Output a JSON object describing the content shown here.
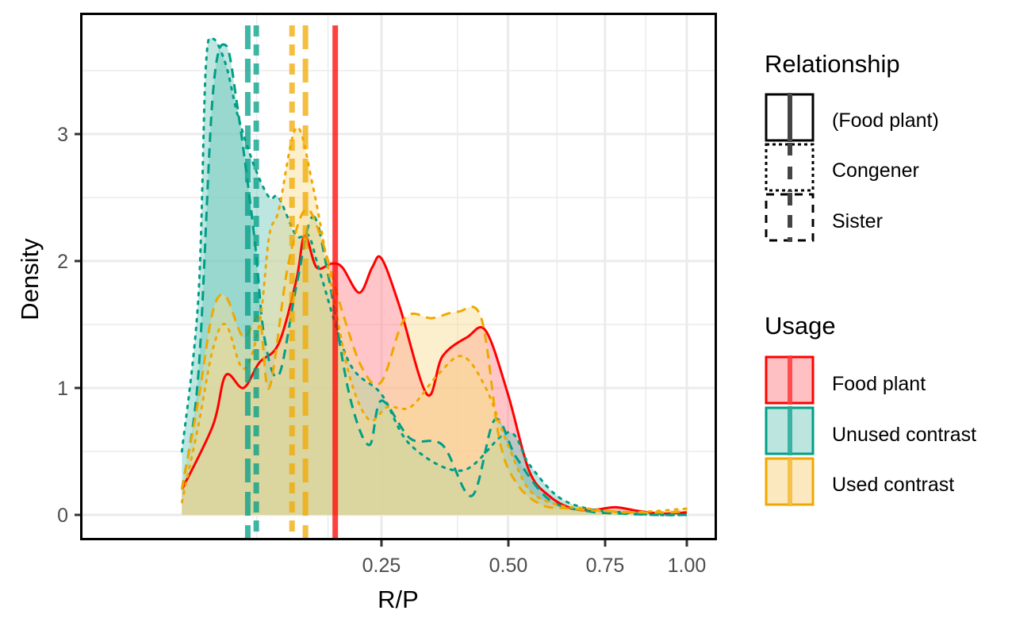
{
  "chart_data": {
    "type": "area",
    "subtype": "density",
    "title": "",
    "xlabel": "R/P",
    "ylabel": "Density",
    "x_scale": "sqrt",
    "xlim": [
      0,
      1
    ],
    "ylim": [
      -0.15,
      3.95
    ],
    "x_ticks": [
      0.25,
      0.5,
      0.75,
      1.0
    ],
    "x_tick_labels": [
      "0.25",
      "0.50",
      "0.75",
      "1.00"
    ],
    "y_ticks": [
      0,
      1,
      2,
      3
    ],
    "y_tick_labels": [
      "0",
      "1",
      "2",
      "3"
    ],
    "grid": true,
    "legend_position": "right",
    "legends": [
      {
        "title": "Relationship",
        "entries": [
          {
            "label": "(Food plant)",
            "linetype": "solid"
          },
          {
            "label": "Congener",
            "linetype": "dotted"
          },
          {
            "label": "Sister",
            "linetype": "dashed"
          }
        ]
      },
      {
        "title": "Usage",
        "entries": [
          {
            "label": "Food plant",
            "color": "#ff0000",
            "fill": "#ffc0c3"
          },
          {
            "label": "Unused contrast",
            "color": "#009e86",
            "fill": "#b9e4df"
          },
          {
            "label": "Used contrast",
            "color": "#f0a800",
            "fill": "#fbe6bc"
          }
        ]
      }
    ],
    "series": [
      {
        "name": "Food plant (Food plant)",
        "usage": "Food plant",
        "relationship": "(Food plant)",
        "color": "#ff0000",
        "fill": "#ff7f87",
        "linetype": "solid",
        "x": [
          0.03,
          0.05,
          0.06,
          0.075,
          0.09,
          0.11,
          0.13,
          0.14,
          0.155,
          0.175,
          0.19,
          0.215,
          0.235,
          0.25,
          0.28,
          0.33,
          0.36,
          0.41,
          0.45,
          0.5,
          0.55,
          0.6,
          0.66,
          0.72,
          0.78,
          0.85,
          0.92,
          1.0
        ],
        "y": [
          0.2,
          0.7,
          1.1,
          1.0,
          1.2,
          1.35,
          1.85,
          2.2,
          1.95,
          1.98,
          1.95,
          1.75,
          1.95,
          2.02,
          1.65,
          0.95,
          1.25,
          1.4,
          1.45,
          0.95,
          0.35,
          0.15,
          0.05,
          0.04,
          0.06,
          0.03,
          0.01,
          0.02
        ],
        "mean_line_x": 0.18
      },
      {
        "name": "Unused contrast (Congener)",
        "usage": "Unused contrast",
        "relationship": "Congener",
        "color": "#009e86",
        "fill": "#6cc8bb",
        "linetype": "dotted",
        "x": [
          0.03,
          0.04,
          0.045,
          0.05,
          0.06,
          0.07,
          0.085,
          0.1,
          0.11,
          0.13,
          0.145,
          0.16,
          0.2,
          0.25,
          0.3,
          0.4,
          0.5,
          0.55,
          0.62,
          0.7,
          0.8,
          0.9,
          1.0
        ],
        "y": [
          0.5,
          1.7,
          3.5,
          3.75,
          3.55,
          3.15,
          2.75,
          2.5,
          2.5,
          2.2,
          2.2,
          1.9,
          1.2,
          0.95,
          0.55,
          0.35,
          0.65,
          0.4,
          0.15,
          0.05,
          0.02,
          0.0,
          0.0
        ],
        "mean_line_x": 0.087
      },
      {
        "name": "Unused contrast (Sister)",
        "usage": "Unused contrast",
        "relationship": "Sister",
        "color": "#009e86",
        "fill": "#6cc8bb",
        "linetype": "dashed",
        "x": [
          0.03,
          0.04,
          0.05,
          0.06,
          0.07,
          0.085,
          0.095,
          0.11,
          0.13,
          0.15,
          0.17,
          0.2,
          0.23,
          0.25,
          0.3,
          0.36,
          0.42,
          0.47,
          0.52,
          0.6,
          0.7,
          0.8,
          0.9,
          1.0
        ],
        "y": [
          0.2,
          1.1,
          3.3,
          3.7,
          3.2,
          2.2,
          1.4,
          1.1,
          1.8,
          2.35,
          1.9,
          0.95,
          0.55,
          0.9,
          0.6,
          0.55,
          0.15,
          0.75,
          0.45,
          0.12,
          0.03,
          0.01,
          0.0,
          0.0
        ],
        "mean_line_x": 0.079
      },
      {
        "name": "Used contrast (Congener)",
        "usage": "Used contrast",
        "relationship": "Congener",
        "color": "#f0a800",
        "fill": "#f9dc93",
        "linetype": "dotted",
        "x": [
          0.03,
          0.04,
          0.05,
          0.06,
          0.075,
          0.09,
          0.1,
          0.11,
          0.13,
          0.15,
          0.175,
          0.2,
          0.23,
          0.26,
          0.3,
          0.35,
          0.4,
          0.45,
          0.5,
          0.55,
          0.62,
          0.7,
          0.8,
          0.9,
          1.0
        ],
        "y": [
          0.1,
          0.7,
          1.3,
          1.5,
          1.15,
          1.5,
          2.2,
          2.4,
          3.05,
          2.6,
          1.8,
          1.1,
          0.75,
          0.85,
          0.85,
          1.1,
          1.25,
          1.0,
          0.55,
          0.2,
          0.08,
          0.05,
          0.02,
          0.03,
          0.05
        ],
        "mean_line_x": 0.125
      },
      {
        "name": "Used contrast (Sister)",
        "usage": "Used contrast",
        "relationship": "Sister",
        "color": "#f0a800",
        "fill": "#f9dc93",
        "linetype": "dashed",
        "x": [
          0.03,
          0.04,
          0.05,
          0.06,
          0.075,
          0.09,
          0.1,
          0.12,
          0.14,
          0.16,
          0.19,
          0.22,
          0.25,
          0.29,
          0.34,
          0.39,
          0.44,
          0.48,
          0.52,
          0.58,
          0.65,
          0.75,
          0.85,
          0.95,
          1.0
        ],
        "y": [
          0.2,
          0.9,
          1.6,
          1.72,
          1.4,
          1.55,
          1.0,
          1.95,
          2.4,
          2.2,
          1.6,
          1.15,
          1.05,
          1.55,
          1.55,
          1.6,
          1.55,
          0.6,
          0.25,
          0.08,
          0.05,
          0.03,
          0.02,
          0.02,
          0.03
        ],
        "mean_line_x": 0.141
      }
    ],
    "vertical_lines": [
      {
        "x": 0.079,
        "color": "#009e86",
        "linetype": "dashed",
        "relationship": "Sister"
      },
      {
        "x": 0.087,
        "color": "#009e86",
        "linetype": "dotted",
        "relationship": "Congener"
      },
      {
        "x": 0.125,
        "color": "#f0a800",
        "linetype": "dotted",
        "relationship": "Congener"
      },
      {
        "x": 0.141,
        "color": "#f0a800",
        "linetype": "dashed",
        "relationship": "Sister"
      },
      {
        "x": 0.18,
        "color": "#ff0000",
        "linetype": "solid",
        "relationship": "(Food plant)"
      }
    ]
  },
  "legend": {
    "relationship_title": "Relationship",
    "relationship_items": [
      "(Food plant)",
      "Congener",
      "Sister"
    ],
    "usage_title": "Usage",
    "usage_items": [
      "Food plant",
      "Unused contrast",
      "Used contrast"
    ]
  },
  "axes": {
    "x_title": "R/P",
    "y_title": "Density",
    "x_tick_labels": [
      "0.25",
      "0.50",
      "0.75",
      "1.00"
    ],
    "y_tick_labels": [
      "0",
      "1",
      "2",
      "3"
    ]
  }
}
